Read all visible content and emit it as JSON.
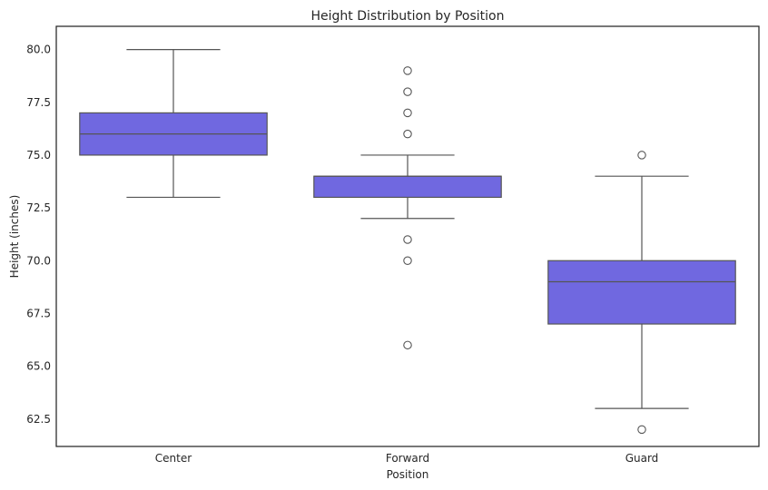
{
  "chart_data": {
    "type": "box",
    "title": "Height Distribution by Position",
    "xlabel": "Position",
    "ylabel": "Height (inches)",
    "categories": [
      "Center",
      "Forward",
      "Guard"
    ],
    "ylim": [
      61.2,
      81.1
    ],
    "yticks": [
      62.5,
      65.0,
      67.5,
      70.0,
      72.5,
      75.0,
      77.5,
      80.0
    ],
    "ytick_labels": [
      "62.5",
      "65.0",
      "67.5",
      "70.0",
      "72.5",
      "75.0",
      "77.5",
      "80.0"
    ],
    "grid": false,
    "box_color": "#7068E0",
    "line_color": "#555555",
    "boxes": [
      {
        "category": "Center",
        "whisker_low": 73,
        "q1": 75,
        "median": 76,
        "q3": 77,
        "whisker_high": 80,
        "outliers": []
      },
      {
        "category": "Forward",
        "whisker_low": 72,
        "q1": 73,
        "median": 74,
        "q3": 74,
        "whisker_high": 75,
        "outliers": [
          79,
          78,
          77,
          76,
          71,
          70,
          66
        ]
      },
      {
        "category": "Guard",
        "whisker_low": 63,
        "q1": 67,
        "median": 69,
        "q3": 70,
        "whisker_high": 74,
        "outliers": [
          75,
          62
        ]
      }
    ]
  }
}
